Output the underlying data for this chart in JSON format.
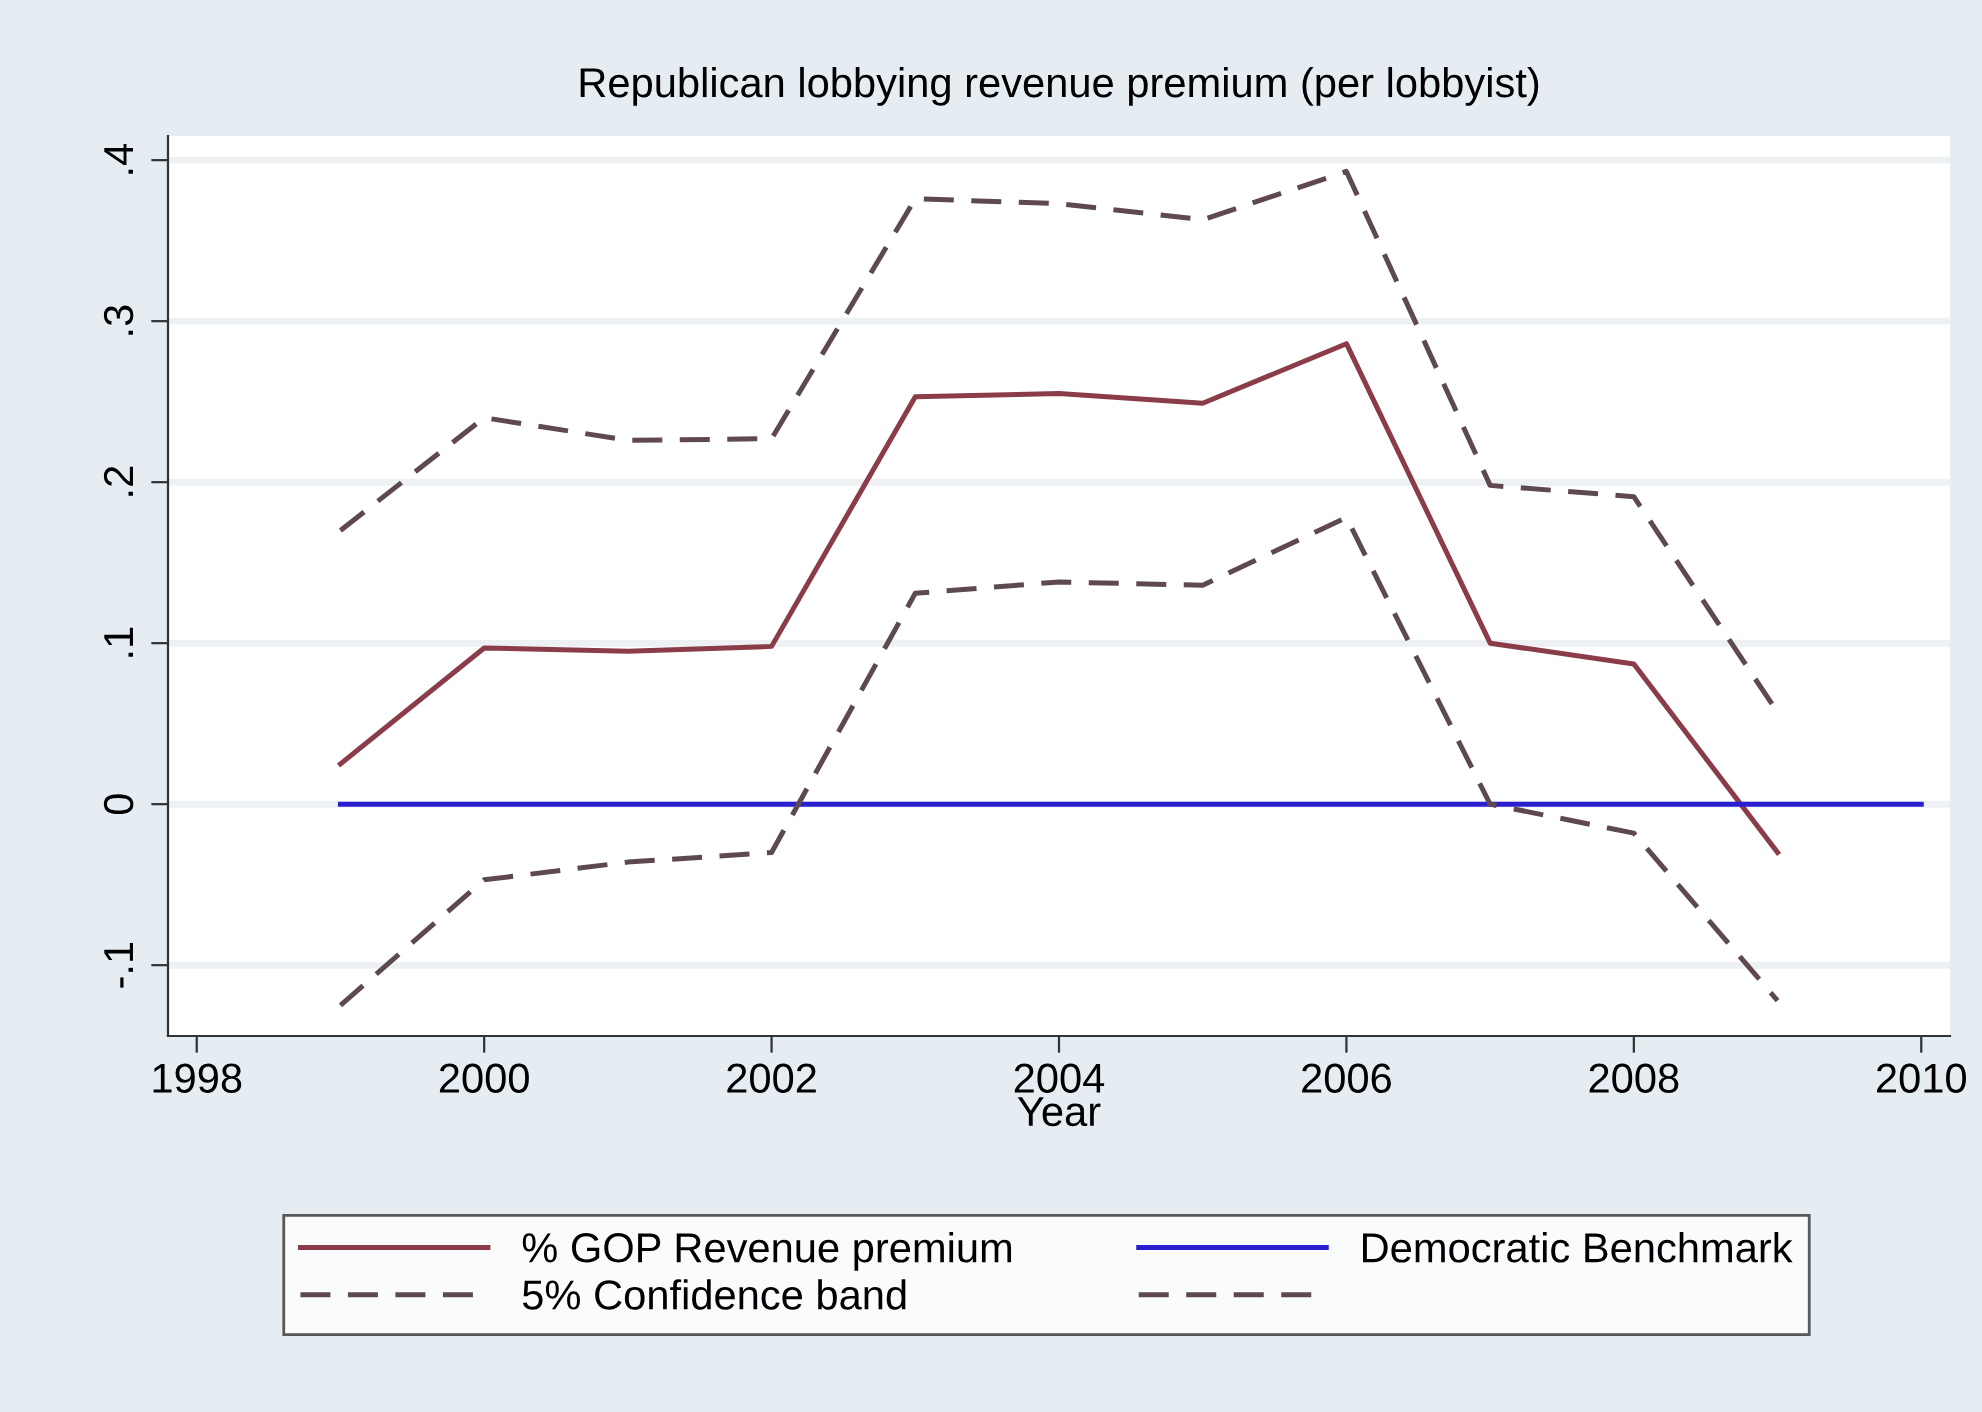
{
  "chart_data": {
    "type": "line",
    "title": "Republican lobbying revenue premium (per lobbyist)",
    "xlabel": "Year",
    "x": [
      1999,
      2000,
      2001,
      2002,
      2003,
      2004,
      2005,
      2006,
      2007,
      2008,
      2009
    ],
    "series": [
      {
        "name": "% GOP Revenue premium",
        "color": "#8a3c48",
        "line_style": "solid",
        "values": [
          0.025,
          0.097,
          0.095,
          0.098,
          0.253,
          0.255,
          0.249,
          0.286,
          0.1,
          0.087,
          -0.03
        ]
      },
      {
        "name": "Democratic Benchmark",
        "color": "#2a1fd0",
        "line_style": "solid",
        "x": [
          1999,
          2010
        ],
        "values": [
          0,
          0
        ]
      },
      {
        "name": "5% Confidence band",
        "color": "#5e4a4e",
        "line_style": "dashed",
        "values": [
          0.17,
          0.24,
          0.226,
          0.227,
          0.376,
          0.373,
          0.363,
          0.393,
          0.198,
          0.191,
          0.057
        ]
      },
      {
        "color": "#5e4a4e",
        "line_style": "dashed",
        "values": [
          -0.125,
          -0.047,
          -0.036,
          -0.03,
          0.131,
          0.138,
          0.136,
          0.178,
          0.0,
          -0.018,
          -0.122
        ]
      }
    ],
    "xlim": [
      1997.8,
      2010.2
    ],
    "xticks": [
      1998,
      2000,
      2002,
      2004,
      2006,
      2008,
      2010
    ],
    "ylim": [
      -0.144,
      0.415
    ],
    "yticks": [
      {
        "value": -0.1,
        "label": "-.1"
      },
      0,
      {
        "value": 0.1,
        "label": ".1"
      },
      {
        "value": 0.2,
        "label": ".2"
      },
      {
        "value": 0.3,
        "label": ".3"
      },
      {
        "value": 0.4,
        "label": ".4"
      }
    ],
    "grid": "y",
    "legend": "bottom",
    "marker": "none"
  }
}
